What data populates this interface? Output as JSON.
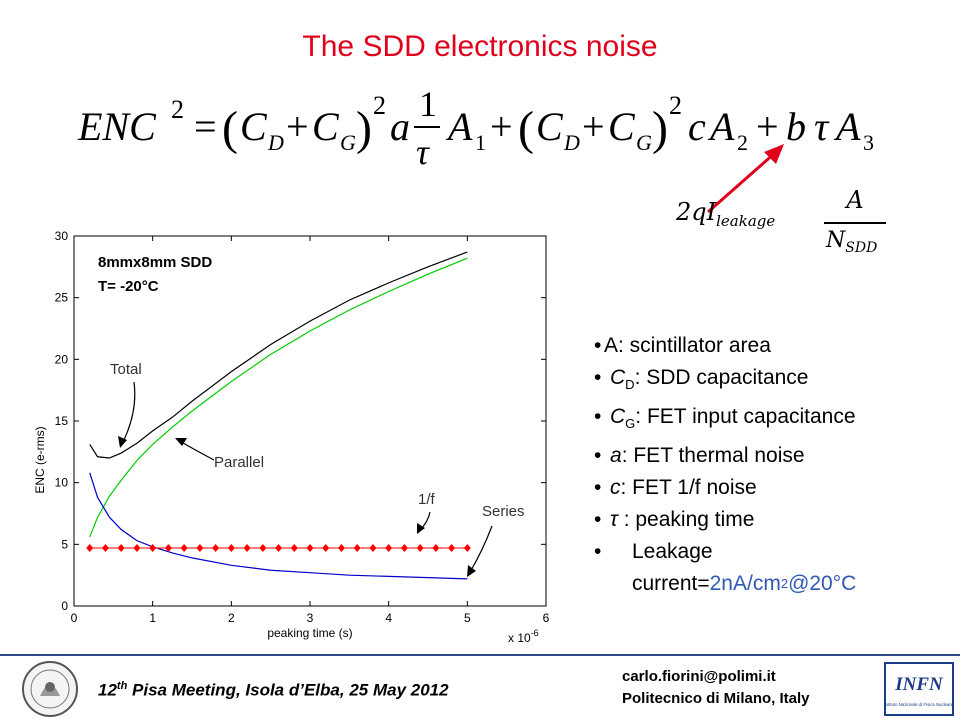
{
  "slide": {
    "title": "The SDD electronics noise",
    "equation_label": "ENC² = (C_D + C_G)² a (1/τ) A₁ + (C_D + C_G)² c A₂ + b τ A₃",
    "leakage_formula": {
      "prefix": "2qI",
      "subscript": "leakage",
      "numerator": "A",
      "denominator": "N",
      "denominator_sub": "SDD"
    },
    "accent_color": "#e0001b",
    "highlight_color": "#2f59b5"
  },
  "chart_data": {
    "type": "line",
    "title": "",
    "xlabel": "peaking time (s)",
    "x_multiplier": "x 10",
    "x_multiplier_exp": "-6",
    "ylabel": "ENC (e-rms)",
    "xlim": [
      0,
      6
    ],
    "ylim": [
      0,
      30
    ],
    "xticks": [
      "0",
      "1",
      "2",
      "3",
      "4",
      "5",
      "6"
    ],
    "yticks": [
      "0",
      "5",
      "10",
      "15",
      "20",
      "25",
      "30"
    ],
    "grid": false,
    "info_line1": "8mmx8mm SDD",
    "info_line2": "T= -20°C",
    "annotations": [
      "Total",
      "Parallel",
      "1/f",
      "Series"
    ],
    "series": [
      {
        "color": "#000000",
        "x": [
          0.2,
          0.3,
          0.45,
          0.6,
          0.8,
          1.0,
          1.25,
          1.5,
          2.0,
          2.5,
          3.0,
          3.5,
          4.0,
          4.5,
          5.0
        ],
        "values": [
          13.1,
          12.1,
          12.0,
          12.4,
          13.2,
          14.2,
          15.3,
          16.6,
          19.0,
          21.2,
          23.1,
          24.8,
          26.2,
          27.5,
          28.7
        ]
      },
      {
        "color": "#00cc00",
        "x": [
          0.2,
          0.3,
          0.45,
          0.6,
          0.8,
          1.0,
          1.25,
          1.5,
          2.0,
          2.5,
          3.0,
          3.5,
          4.0,
          4.5,
          5.0
        ],
        "values": [
          5.6,
          7.2,
          8.9,
          10.2,
          11.8,
          13.1,
          14.5,
          15.8,
          18.2,
          20.4,
          22.3,
          24.0,
          25.5,
          26.9,
          28.2
        ]
      },
      {
        "color": "#0000cc",
        "x": [
          0.2,
          0.3,
          0.45,
          0.6,
          0.8,
          1.0,
          1.25,
          1.5,
          2.0,
          2.5,
          3.0,
          3.5,
          4.0,
          4.5,
          5.0
        ],
        "values": [
          10.8,
          8.8,
          7.2,
          6.2,
          5.3,
          4.8,
          4.3,
          3.9,
          3.3,
          2.9,
          2.7,
          2.5,
          2.4,
          2.3,
          2.2
        ]
      },
      {
        "color": "#ff0000",
        "marker": "diamond",
        "x": [
          0.2,
          0.4,
          0.6,
          0.8,
          1.0,
          1.2,
          1.4,
          1.6,
          1.8,
          2.0,
          2.2,
          2.4,
          2.6,
          2.8,
          3.0,
          3.2,
          3.4,
          3.6,
          3.8,
          4.0,
          4.2,
          4.4,
          4.6,
          4.8,
          5.0
        ],
        "values": [
          4.7,
          4.7,
          4.7,
          4.7,
          4.7,
          4.7,
          4.7,
          4.7,
          4.7,
          4.7,
          4.7,
          4.7,
          4.7,
          4.7,
          4.7,
          4.7,
          4.7,
          4.7,
          4.7,
          4.7,
          4.7,
          4.7,
          4.7,
          4.7,
          4.7
        ]
      }
    ]
  },
  "bullets": [
    {
      "symbol": "",
      "text": "A: scintillator area"
    },
    {
      "symbol": "C",
      "sub": "D",
      "text": ": SDD capacitance"
    },
    {
      "symbol": "C",
      "sub": "G",
      "text": ": FET input capacitance"
    },
    {
      "symbol": "a",
      "text": ": FET thermal noise"
    },
    {
      "symbol": "c",
      "text": ": FET 1/f noise"
    },
    {
      "symbol": "τ",
      "text": " : peaking time"
    },
    {
      "line1": "Leakage",
      "line2": "current=",
      "value": "2nA/cm",
      "value_sup": "2",
      "value_tail": "@20°C"
    }
  ],
  "footer": {
    "meeting_num": "12",
    "meeting_sup": "th",
    "meeting_text": " Pisa Meeting, Isola d’Elba, 25 May 2012",
    "email": "carlo.fiorini@polimi.it",
    "affiliation": "Politecnico di Milano, Italy",
    "logo_right_text": "INFN",
    "logo_right_sub": "Istituto Nazionale di Fisica Nucleare"
  }
}
